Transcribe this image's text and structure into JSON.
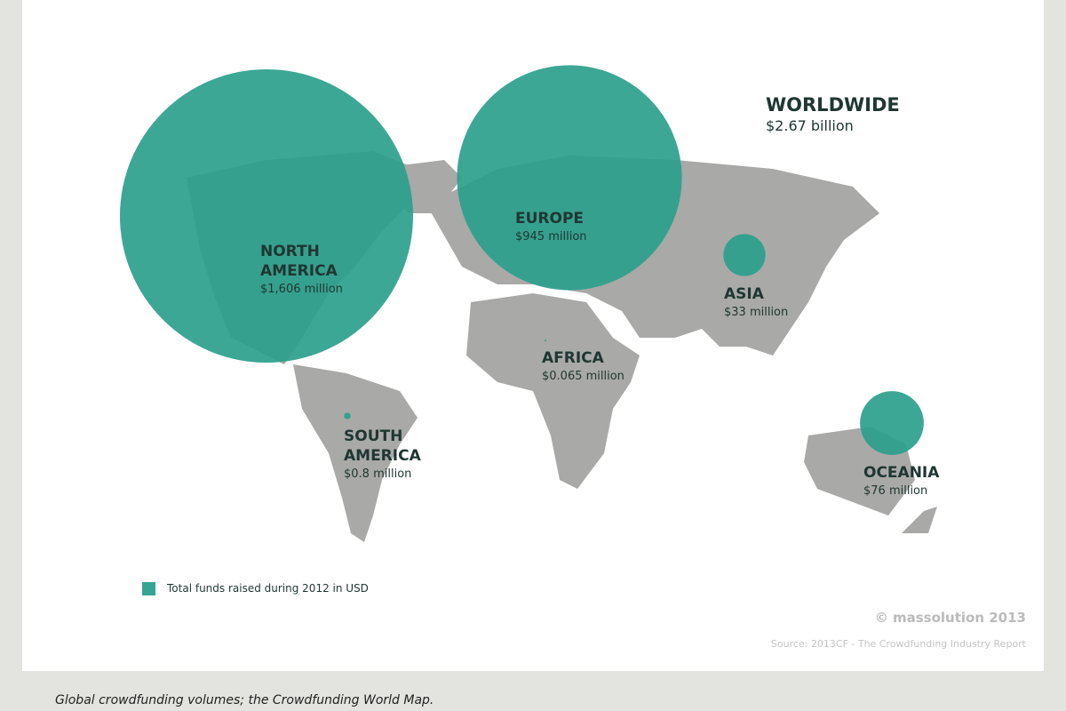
{
  "worldwide": {
    "title": "WORLDWIDE",
    "value_label": "$2.67 billion"
  },
  "regions": [
    {
      "name": "NORTH AMERICA",
      "value": 1606,
      "value_label": "$1,606 million"
    },
    {
      "name": "EUROPE",
      "value": 945,
      "value_label": "$945 million"
    },
    {
      "name": "ASIA",
      "value": 33,
      "value_label": "$33 million"
    },
    {
      "name": "AFRICA",
      "value": 0.065,
      "value_label": "$0.065 million"
    },
    {
      "name": "SOUTH AMERICA",
      "value": 0.8,
      "value_label": "$0.8 million"
    },
    {
      "name": "OCEANIA",
      "value": 76,
      "value_label": "$76 million"
    }
  ],
  "legend": "Total funds raised during 2012 in USD",
  "copyright": "© massolution 2013",
  "source": "Source: 2013CF - The Crowdfunding Industry Report",
  "caption": "Global crowdfunding volumes; the Crowdfunding World Map."
}
